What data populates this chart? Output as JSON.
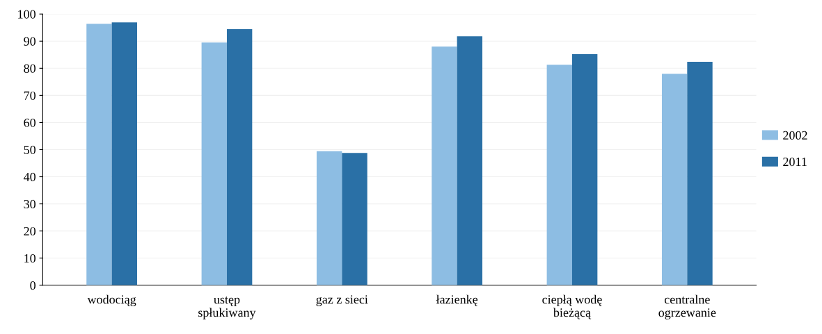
{
  "chart_data": {
    "type": "bar",
    "categories": [
      "wodociąg",
      "ustęp\nspłukiwany",
      "gaz z sieci",
      "łazienkę",
      "ciepłą wodę\nbieżącą",
      "centralne\nogrzewanie"
    ],
    "series": [
      {
        "name": "2002",
        "color": "#8dbde3",
        "values": [
          96.4,
          89.5,
          49.4,
          88.0,
          81.3,
          78.0
        ]
      },
      {
        "name": "2011",
        "color": "#2a70a6",
        "values": [
          96.9,
          94.4,
          48.8,
          91.8,
          85.2,
          82.4
        ]
      }
    ],
    "ylim": [
      0,
      100
    ],
    "yticks": [
      0,
      10,
      20,
      30,
      40,
      50,
      60,
      70,
      80,
      90,
      100
    ],
    "grid": "y",
    "legend": "right"
  }
}
